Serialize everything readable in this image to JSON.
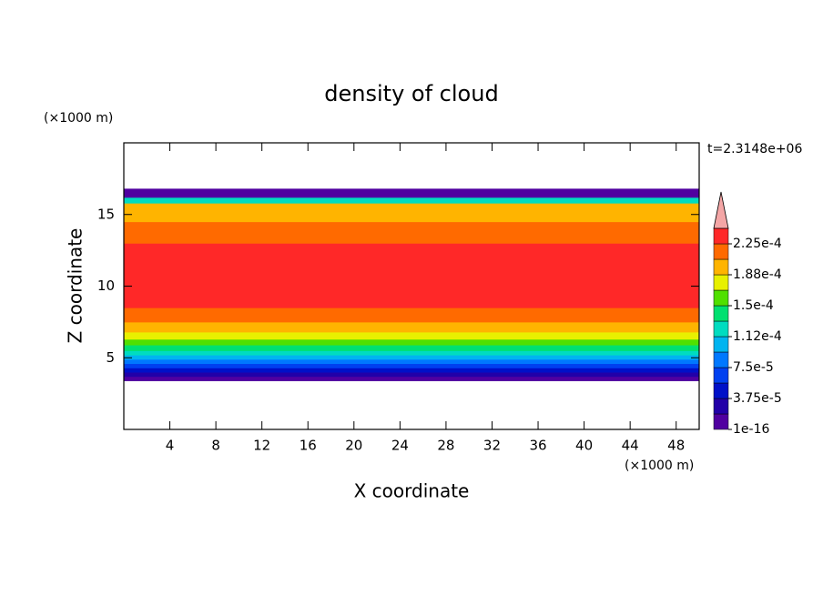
{
  "chart_data": {
    "type": "contour",
    "title": "density of cloud",
    "x_label": "X coordinate",
    "y_label": "Z coordinate",
    "x_unit": "(×1000 m)",
    "y_unit": "(×1000 m)",
    "annotation": "t=2.3148e+06",
    "xlim": [
      0,
      50
    ],
    "ylim": [
      0,
      20
    ],
    "xticks": [
      4,
      8,
      12,
      16,
      20,
      24,
      28,
      32,
      36,
      40,
      44,
      48
    ],
    "yticks": [
      5,
      10,
      15
    ],
    "z_edges": [
      3.4,
      3.7,
      4.0,
      4.3,
      4.6,
      4.9,
      5.2,
      5.5,
      5.9,
      6.3,
      6.8,
      7.5,
      8.5,
      13,
      14.5,
      15.8,
      16.2,
      16.8
    ],
    "values": [
      1e-05,
      2.5e-05,
      4.5e-05,
      6.5e-05,
      8.5e-05,
      0.0001,
      0.00012,
      0.00014,
      0.00016,
      0.000178,
      0.000195,
      0.000215,
      0.000235,
      0.000215,
      0.0002,
      0.00012,
      1e-05
    ],
    "levels": [
      1e-16,
      1.875e-05,
      3.75e-05,
      5.625e-05,
      7.5e-05,
      9.375e-05,
      0.0001125,
      0.00013125,
      0.00015,
      0.00016875,
      0.0001875,
      0.00020625,
      0.000225,
      0.00024375
    ],
    "colors": [
      "#5000a0",
      "#2200a8",
      "#0010c8",
      "#0040f0",
      "#0078ff",
      "#00b4f0",
      "#00dcc0",
      "#00e070",
      "#50e000",
      "#e8f000",
      "#ffb400",
      "#ff6a00",
      "#ff2828"
    ],
    "over_color": "#f4a6a6",
    "colorbar_ticks": [
      {
        "value": 1e-16,
        "label": "1e-16"
      },
      {
        "value": 3.75e-05,
        "label": "3.75e-5"
      },
      {
        "value": 7.5e-05,
        "label": "7.5e-5"
      },
      {
        "value": 0.0001125,
        "label": "1.12e-4"
      },
      {
        "value": 0.00015,
        "label": "1.5e-4"
      },
      {
        "value": 0.0001875,
        "label": "1.88e-4"
      },
      {
        "value": 0.000225,
        "label": "2.25e-4"
      }
    ]
  }
}
